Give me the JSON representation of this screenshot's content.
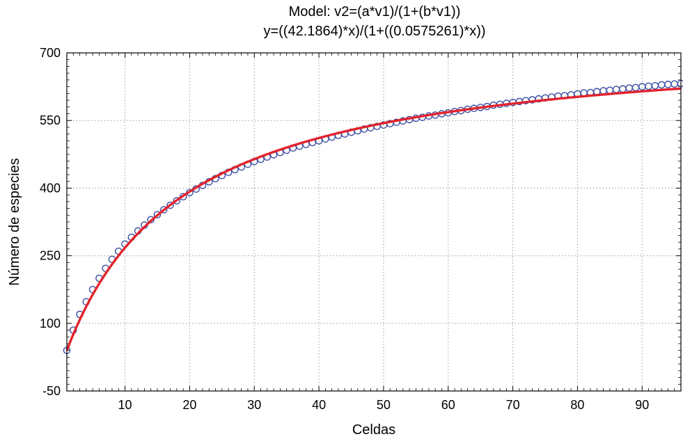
{
  "chart_data": {
    "type": "scatter",
    "title_line1": "Model: v2=(a*v1)/(1+(b*v1))",
    "title_line2": "y=((42.1864)*x)/(1+((0.0575261)*x))",
    "xlabel": "Celdas",
    "ylabel": "Número de especies",
    "xlim": [
      1,
      96
    ],
    "ylim": [
      -50,
      700
    ],
    "x_ticks": [
      10,
      20,
      30,
      40,
      50,
      60,
      70,
      80,
      90
    ],
    "y_ticks": [
      -50,
      100,
      250,
      400,
      550,
      700
    ],
    "grid": true,
    "grid_style": "dotted",
    "model": {
      "a": 42.1864,
      "b": 0.0575261
    },
    "series": [
      {
        "kind": "points",
        "marker": "open-circle",
        "color": "#3b4fa3",
        "x": [
          1,
          2,
          3,
          4,
          5,
          6,
          7,
          8,
          9,
          10,
          11,
          12,
          13,
          14,
          15,
          16,
          17,
          18,
          19,
          20,
          21,
          22,
          23,
          24,
          25,
          26,
          27,
          28,
          29,
          30,
          31,
          32,
          33,
          34,
          35,
          36,
          37,
          38,
          39,
          40,
          41,
          42,
          43,
          44,
          45,
          46,
          47,
          48,
          49,
          50,
          51,
          52,
          53,
          54,
          55,
          56,
          57,
          58,
          59,
          60,
          61,
          62,
          63,
          64,
          65,
          66,
          67,
          68,
          69,
          70,
          71,
          72,
          73,
          74,
          75,
          76,
          77,
          78,
          79,
          80,
          81,
          82,
          83,
          84,
          85,
          86,
          87,
          88,
          89,
          90,
          91,
          92,
          93,
          94,
          95,
          96
        ],
        "y": [
          40,
          85,
          120,
          148,
          175,
          200,
          222,
          242,
          260,
          276,
          291,
          305,
          318,
          330,
          341,
          352,
          362,
          372,
          381,
          390,
          398,
          406,
          414,
          421,
          428,
          435,
          441,
          447,
          453,
          459,
          464,
          469,
          474,
          479,
          484,
          489,
          493,
          497,
          501,
          505,
          509,
          513,
          517,
          520,
          524,
          527,
          531,
          534,
          537,
          540,
          543,
          546,
          549,
          552,
          555,
          557,
          560,
          562,
          565,
          567,
          570,
          572,
          575,
          577,
          579,
          581,
          584,
          586,
          588,
          590,
          592,
          594,
          596,
          598,
          600,
          602,
          604,
          605,
          607,
          609,
          611,
          612,
          614,
          616,
          617,
          619,
          620,
          622,
          623,
          625,
          626,
          627,
          629,
          630,
          631,
          632
        ]
      },
      {
        "kind": "fitted-curve",
        "color": "#e3232c"
      }
    ]
  }
}
